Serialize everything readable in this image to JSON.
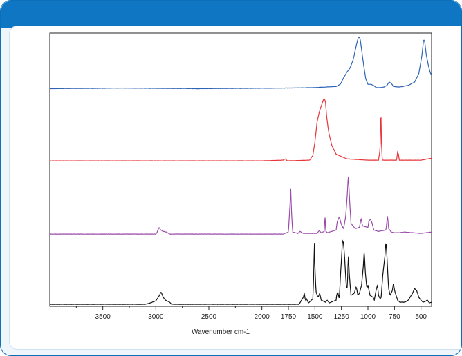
{
  "chart_data": {
    "type": "line",
    "title": "",
    "xlabel": "Wavenumber cm-1",
    "ylabel": "",
    "xlim": [
      4000,
      400
    ],
    "x_reversed": true,
    "grid": false,
    "legend": "none",
    "x_ticks": [
      3500,
      3000,
      2500,
      2000,
      1750,
      1500,
      1250,
      1000,
      750,
      500
    ],
    "x_tick_labels": [
      "3500",
      "3000",
      "2500",
      "2000",
      "1750",
      "1500",
      "1250",
      "1000",
      "750",
      "500"
    ],
    "series": [
      {
        "color": "#2d63b5",
        "baseline": 0.02,
        "noise": 0.004,
        "points": [
          [
            4000,
            0.02
          ],
          [
            3300,
            0.03
          ],
          [
            2600,
            0.02
          ],
          [
            1800,
            0.03
          ],
          [
            1500,
            0.04
          ],
          [
            1300,
            0.06
          ],
          [
            1260,
            0.1
          ],
          [
            1230,
            0.22
          ],
          [
            1200,
            0.32
          ],
          [
            1170,
            0.4
          ],
          [
            1140,
            0.55
          ],
          [
            1110,
            0.82
          ],
          [
            1090,
            0.98
          ],
          [
            1075,
            0.96
          ],
          [
            1060,
            0.75
          ],
          [
            1040,
            0.45
          ],
          [
            1020,
            0.2
          ],
          [
            1000,
            0.1
          ],
          [
            970,
            0.1
          ],
          [
            950,
            0.08
          ],
          [
            920,
            0.04
          ],
          [
            880,
            0.04
          ],
          [
            850,
            0.05
          ],
          [
            820,
            0.08
          ],
          [
            800,
            0.14
          ],
          [
            780,
            0.12
          ],
          [
            760,
            0.06
          ],
          [
            700,
            0.05
          ],
          [
            620,
            0.08
          ],
          [
            560,
            0.14
          ],
          [
            520,
            0.3
          ],
          [
            490,
            0.65
          ],
          [
            475,
            0.93
          ],
          [
            465,
            0.9
          ],
          [
            450,
            0.65
          ],
          [
            430,
            0.45
          ],
          [
            410,
            0.3
          ],
          [
            400,
            0.28
          ]
        ]
      },
      {
        "color": "#e8353a",
        "baseline": 0.02,
        "noise": 0.003,
        "points": [
          [
            4000,
            0.02
          ],
          [
            3000,
            0.02
          ],
          [
            2000,
            0.02
          ],
          [
            1800,
            0.03
          ],
          [
            1780,
            0.05
          ],
          [
            1760,
            0.02
          ],
          [
            1550,
            0.03
          ],
          [
            1520,
            0.1
          ],
          [
            1500,
            0.3
          ],
          [
            1480,
            0.6
          ],
          [
            1460,
            0.75
          ],
          [
            1440,
            0.85
          ],
          [
            1420,
            0.94
          ],
          [
            1410,
            0.96
          ],
          [
            1400,
            0.9
          ],
          [
            1390,
            0.7
          ],
          [
            1370,
            0.45
          ],
          [
            1340,
            0.25
          ],
          [
            1300,
            0.12
          ],
          [
            1200,
            0.05
          ],
          [
            1000,
            0.03
          ],
          [
            900,
            0.03
          ],
          [
            885,
            0.2
          ],
          [
            878,
            0.85
          ],
          [
            872,
            0.3
          ],
          [
            865,
            0.03
          ],
          [
            730,
            0.03
          ],
          [
            720,
            0.15
          ],
          [
            712,
            0.12
          ],
          [
            705,
            0.03
          ],
          [
            500,
            0.03
          ],
          [
            400,
            0.06
          ]
        ]
      },
      {
        "color": "#9a4aa9",
        "baseline": 0.02,
        "noise": 0.003,
        "points": [
          [
            4000,
            0.02
          ],
          [
            3000,
            0.02
          ],
          [
            2990,
            0.04
          ],
          [
            2970,
            0.12
          ],
          [
            2955,
            0.08
          ],
          [
            2930,
            0.06
          ],
          [
            2900,
            0.05
          ],
          [
            2870,
            0.02
          ],
          [
            1800,
            0.02
          ],
          [
            1750,
            0.05
          ],
          [
            1735,
            0.45
          ],
          [
            1728,
            0.7
          ],
          [
            1722,
            0.4
          ],
          [
            1710,
            0.05
          ],
          [
            1660,
            0.03
          ],
          [
            1640,
            0.06
          ],
          [
            1610,
            0.03
          ],
          [
            1480,
            0.03
          ],
          [
            1460,
            0.07
          ],
          [
            1440,
            0.04
          ],
          [
            1412,
            0.06
          ],
          [
            1405,
            0.3
          ],
          [
            1398,
            0.06
          ],
          [
            1380,
            0.04
          ],
          [
            1300,
            0.08
          ],
          [
            1290,
            0.2
          ],
          [
            1270,
            0.28
          ],
          [
            1250,
            0.16
          ],
          [
            1230,
            0.1
          ],
          [
            1210,
            0.28
          ],
          [
            1195,
            0.6
          ],
          [
            1185,
            0.92
          ],
          [
            1175,
            0.6
          ],
          [
            1160,
            0.18
          ],
          [
            1120,
            0.1
          ],
          [
            1080,
            0.12
          ],
          [
            1065,
            0.25
          ],
          [
            1050,
            0.14
          ],
          [
            1000,
            0.12
          ],
          [
            990,
            0.22
          ],
          [
            975,
            0.24
          ],
          [
            960,
            0.18
          ],
          [
            945,
            0.08
          ],
          [
            900,
            0.06
          ],
          [
            830,
            0.08
          ],
          [
            815,
            0.3
          ],
          [
            805,
            0.1
          ],
          [
            780,
            0.05
          ],
          [
            750,
            0.04
          ],
          [
            700,
            0.04
          ],
          [
            660,
            0.05
          ],
          [
            500,
            0.03
          ],
          [
            400,
            0.05
          ]
        ]
      },
      {
        "color": "#111111",
        "baseline": 0.02,
        "noise": 0.003,
        "points": [
          [
            4000,
            0.02
          ],
          [
            3200,
            0.02
          ],
          [
            3100,
            0.02
          ],
          [
            3050,
            0.04
          ],
          [
            3000,
            0.07
          ],
          [
            2970,
            0.14
          ],
          [
            2950,
            0.2
          ],
          [
            2930,
            0.12
          ],
          [
            2910,
            0.08
          ],
          [
            2870,
            0.05
          ],
          [
            2850,
            0.02
          ],
          [
            1800,
            0.02
          ],
          [
            1650,
            0.02
          ],
          [
            1610,
            0.12
          ],
          [
            1600,
            0.18
          ],
          [
            1590,
            0.08
          ],
          [
            1580,
            0.1
          ],
          [
            1560,
            0.04
          ],
          [
            1520,
            0.1
          ],
          [
            1510,
            0.5
          ],
          [
            1505,
            1.0
          ],
          [
            1500,
            0.6
          ],
          [
            1490,
            0.2
          ],
          [
            1470,
            0.12
          ],
          [
            1455,
            0.18
          ],
          [
            1440,
            0.08
          ],
          [
            1400,
            0.05
          ],
          [
            1385,
            0.08
          ],
          [
            1365,
            0.04
          ],
          [
            1300,
            0.08
          ],
          [
            1295,
            0.15
          ],
          [
            1285,
            0.2
          ],
          [
            1270,
            0.1
          ],
          [
            1260,
            0.4
          ],
          [
            1240,
            0.95
          ],
          [
            1230,
            0.92
          ],
          [
            1220,
            0.7
          ],
          [
            1205,
            0.3
          ],
          [
            1195,
            0.25
          ],
          [
            1185,
            0.75
          ],
          [
            1175,
            0.45
          ],
          [
            1160,
            0.15
          ],
          [
            1130,
            0.18
          ],
          [
            1110,
            0.28
          ],
          [
            1095,
            0.15
          ],
          [
            1080,
            0.18
          ],
          [
            1060,
            0.3
          ],
          [
            1045,
            0.55
          ],
          [
            1035,
            0.8
          ],
          [
            1025,
            0.5
          ],
          [
            1010,
            0.25
          ],
          [
            1000,
            0.3
          ],
          [
            980,
            0.15
          ],
          [
            950,
            0.12
          ],
          [
            940,
            0.08
          ],
          [
            920,
            0.25
          ],
          [
            910,
            0.3
          ],
          [
            900,
            0.15
          ],
          [
            885,
            0.1
          ],
          [
            875,
            0.12
          ],
          [
            860,
            0.45
          ],
          [
            840,
            0.72
          ],
          [
            830,
            0.95
          ],
          [
            820,
            0.7
          ],
          [
            805,
            0.25
          ],
          [
            790,
            0.15
          ],
          [
            770,
            0.22
          ],
          [
            760,
            0.32
          ],
          [
            745,
            0.2
          ],
          [
            720,
            0.08
          ],
          [
            700,
            0.05
          ],
          [
            650,
            0.05
          ],
          [
            620,
            0.08
          ],
          [
            580,
            0.18
          ],
          [
            560,
            0.25
          ],
          [
            540,
            0.22
          ],
          [
            520,
            0.12
          ],
          [
            500,
            0.08
          ],
          [
            480,
            0.05
          ],
          [
            460,
            0.06
          ],
          [
            440,
            0.08
          ],
          [
            420,
            0.04
          ],
          [
            400,
            0.05
          ]
        ]
      }
    ]
  }
}
